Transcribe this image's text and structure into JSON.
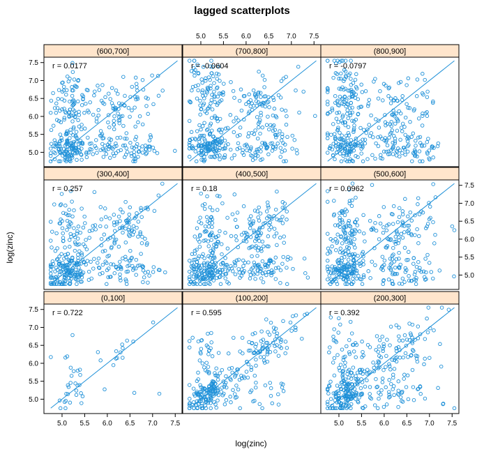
{
  "chart_data": {
    "type": "scatter",
    "title": "lagged scatterplots",
    "xlabel": "log(zinc)",
    "ylabel": "log(zinc)",
    "xlim": [
      4.6,
      7.65
    ],
    "ylim": [
      4.6,
      7.65
    ],
    "ticks": [
      "5.0",
      "5.5",
      "6.0",
      "6.5",
      "7.0",
      "7.5"
    ],
    "tick_values": [
      5.0,
      5.5,
      6.0,
      6.5,
      7.0,
      7.5
    ],
    "reference_line": "y = x",
    "colors": {
      "points": "#1e90d8",
      "line": "#1e90d8",
      "strip_fill": "#ffe5cc",
      "frame": "#000000"
    },
    "panels": [
      {
        "label": "(0,100]",
        "r": "r = 0.722",
        "n": 45
      },
      {
        "label": "(100,200]",
        "r": "r = 0.595",
        "n": 300
      },
      {
        "label": "(200,300]",
        "r": "r = 0.392",
        "n": 360
      },
      {
        "label": "(300,400]",
        "r": "r = 0.257",
        "n": 380
      },
      {
        "label": "(400,500]",
        "r": "r = 0.18",
        "n": 400
      },
      {
        "label": "(500,600]",
        "r": "r = 0.0962",
        "n": 400
      },
      {
        "label": "(600,700]",
        "r": "r = 0.0177",
        "n": 380
      },
      {
        "label": "(700,800]",
        "r": "r = -0.0604",
        "n": 400
      },
      {
        "label": "(800,900]",
        "r": "r = -0.0797",
        "n": 400
      }
    ]
  }
}
